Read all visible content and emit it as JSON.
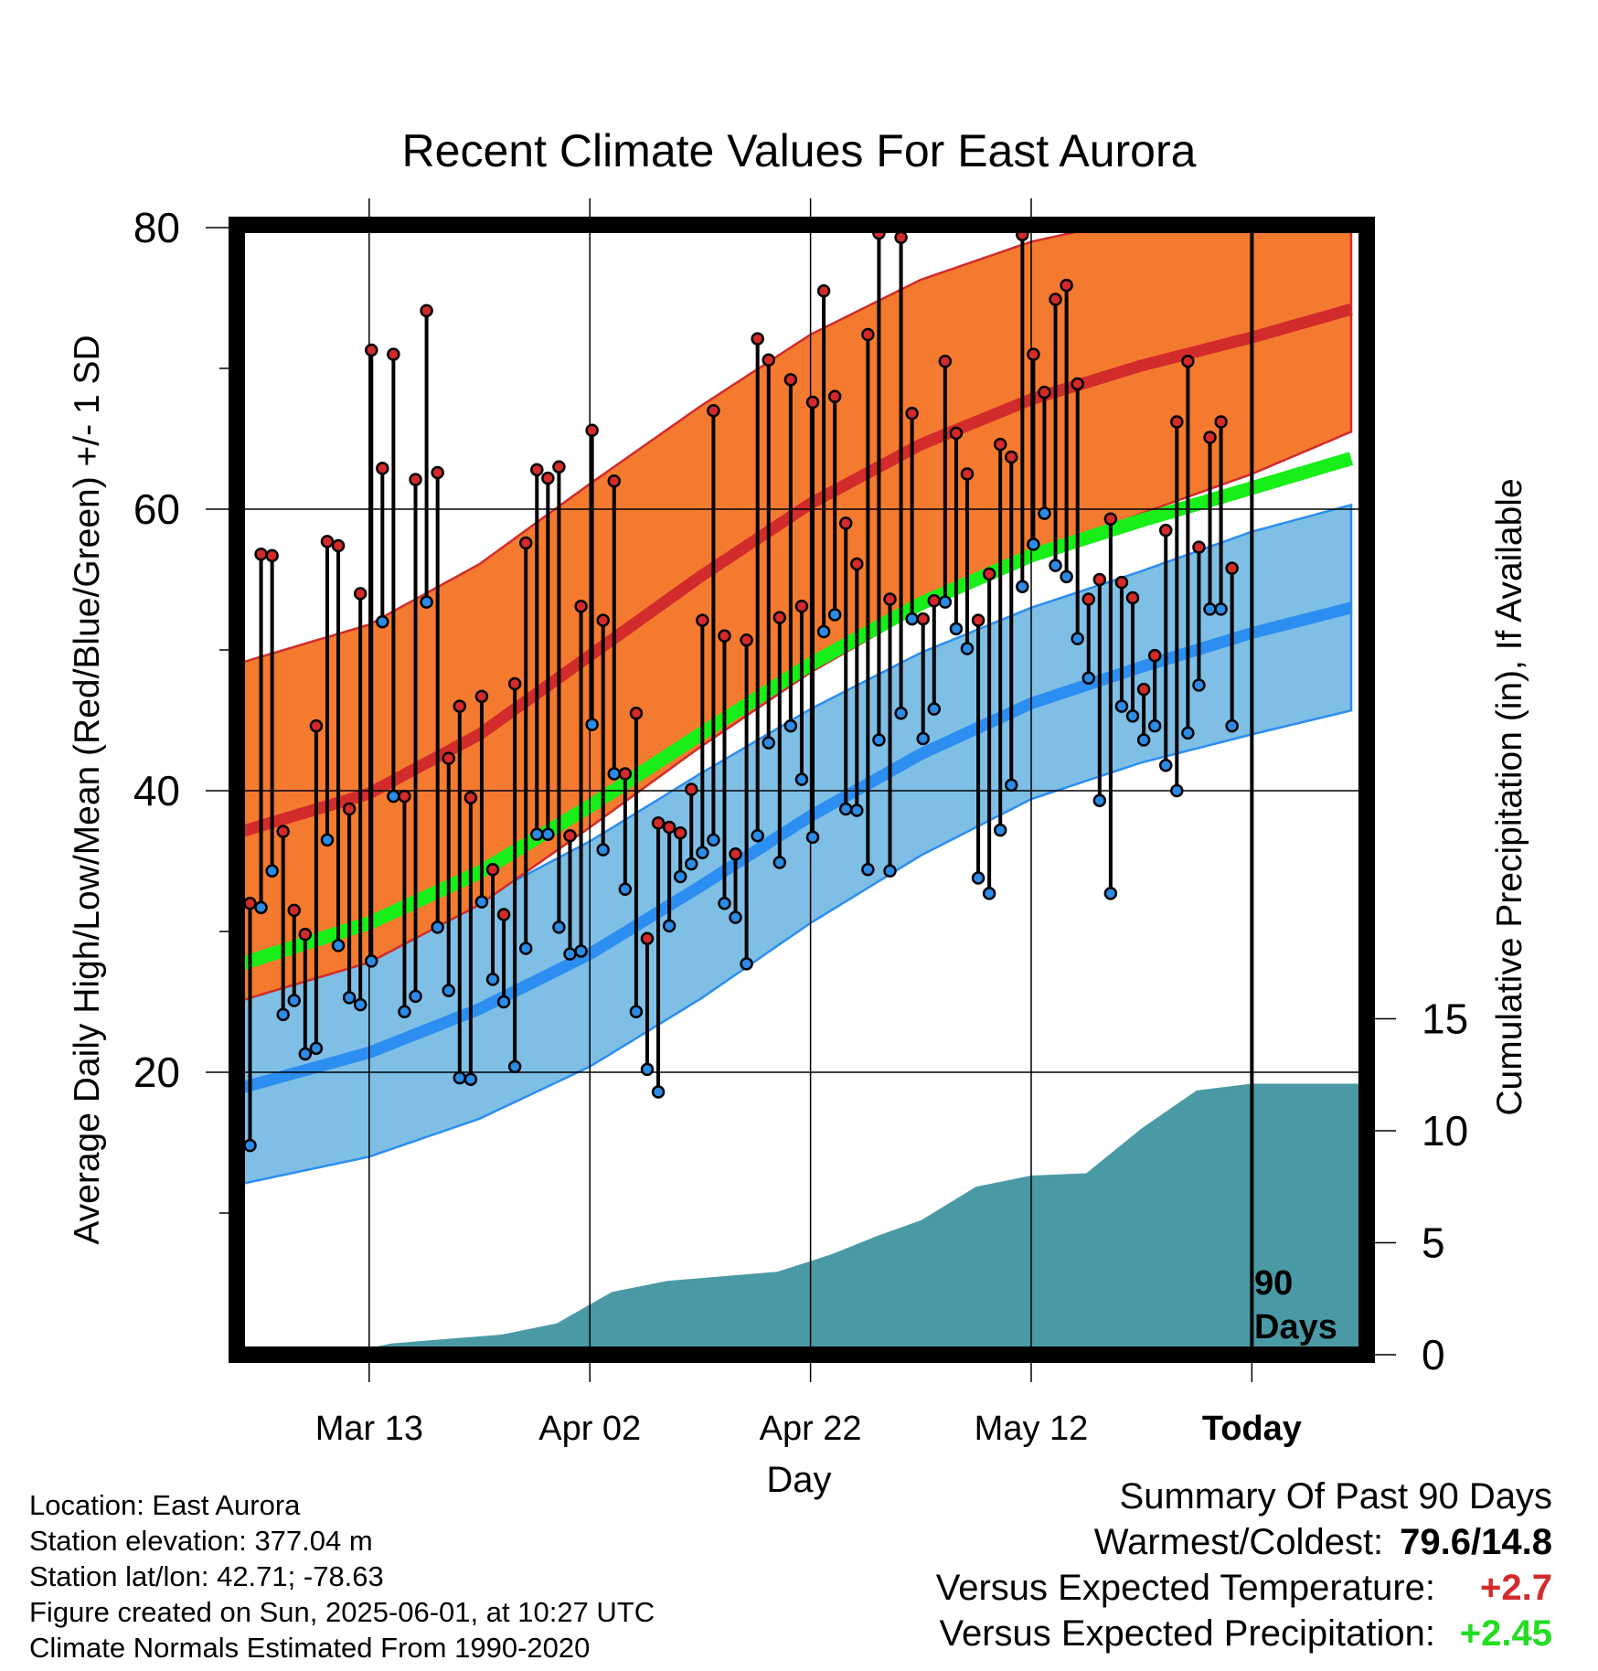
{
  "chart_data": {
    "type": "line",
    "title": "Recent Climate Values For East Aurora",
    "xlabel": "Day",
    "ylabel": "Average Daily High/Low/Mean (Red/Blue/Green) +/- 1 SD",
    "y2label": "Cumulative Precipitation (in), If Available",
    "x_tick_labels": [
      "Mar 13",
      "Apr 02",
      "Apr 22",
      "May 12",
      "Today"
    ],
    "x_ticks": [
      "2025-03-13",
      "2025-04-02",
      "2025-04-22",
      "2025-05-12",
      "2025-06-01"
    ],
    "xlim": [
      "2025-03-01",
      "2025-06-10"
    ],
    "ylim": [
      0,
      85
    ],
    "y_ticks": [
      20,
      40,
      60,
      80
    ],
    "y2lim": [
      0,
      20
    ],
    "y2_ticks": [
      0,
      5,
      10,
      15
    ],
    "grid": true,
    "today_marker": "90\nDays",
    "colors": {
      "high_band": "#f47a30",
      "high_line": "#d22b2b",
      "high_marker": "#d42a2a",
      "low_band": "#7fbfe6",
      "low_line": "#2c8ef0",
      "low_marker": "#2b8be6",
      "mean_line": "#18ee18",
      "precip": "#4a9aa6",
      "warm_text": "#d42a2a",
      "precip_text": "#22dd22"
    },
    "normals": {
      "x": [
        "2025-03-01",
        "2025-03-13",
        "2025-03-23",
        "2025-04-02",
        "2025-04-12",
        "2025-04-22",
        "2025-05-02",
        "2025-05-12",
        "2025-05-22",
        "2025-06-01",
        "2025-06-10"
      ],
      "high_mean": [
        37.0,
        39.8,
        44.0,
        49.6,
        55.2,
        60.4,
        64.6,
        67.8,
        70.2,
        72.2,
        74.2
      ],
      "high_sd": [
        12.0,
        12.0,
        12.1,
        12.2,
        12.1,
        12.0,
        11.7,
        11.2,
        10.5,
        9.7,
        8.7
      ],
      "low_mean": [
        18.8,
        21.4,
        24.5,
        28.4,
        33.2,
        38.2,
        42.6,
        46.2,
        48.8,
        51.2,
        53.0
      ],
      "low_sd": [
        6.8,
        7.4,
        7.8,
        8.0,
        8.0,
        7.6,
        7.2,
        6.8,
        6.8,
        7.2,
        7.3
      ],
      "mean": [
        27.6,
        30.6,
        34.2,
        38.9,
        44.0,
        49.0,
        53.3,
        56.7,
        59.2,
        61.5,
        63.6
      ]
    },
    "series": [
      {
        "name": "Daily High",
        "values": [
          32.0,
          56.8,
          56.7,
          37.1,
          31.5,
          29.8,
          44.6,
          57.7,
          57.4,
          38.7,
          54.0,
          71.3,
          62.9,
          71.0,
          39.6,
          62.1,
          74.1,
          62.6,
          42.3,
          46.0,
          39.5,
          46.7,
          34.4,
          31.2,
          47.6,
          57.6,
          62.8,
          62.2,
          63.0,
          36.8,
          53.1,
          65.6,
          52.1,
          62.0,
          41.2,
          45.5,
          29.5,
          37.7,
          37.4,
          37.0,
          40.1,
          52.1,
          67.0,
          51.0,
          35.5,
          50.7,
          72.1,
          70.6,
          52.3,
          69.2,
          53.1,
          67.6,
          75.5,
          68.0,
          59.0,
          56.1,
          72.4,
          79.6,
          53.6,
          79.3,
          66.8,
          52.2,
          53.5,
          70.5,
          65.4,
          62.5,
          52.1,
          55.4,
          64.6,
          63.7,
          79.5,
          71.0,
          68.3,
          74.9,
          75.9,
          68.9,
          53.6,
          55.0,
          59.3,
          54.8,
          53.7,
          47.2,
          49.6,
          58.5,
          66.2,
          70.5,
          57.3,
          65.1,
          66.2,
          55.8
        ]
      },
      {
        "name": "Daily Low",
        "values": [
          14.8,
          31.7,
          34.3,
          24.1,
          25.1,
          21.3,
          21.7,
          36.5,
          29.0,
          25.3,
          24.8,
          27.9,
          52.0,
          39.6,
          24.3,
          25.4,
          53.4,
          30.3,
          25.8,
          19.6,
          19.5,
          32.1,
          26.6,
          25.0,
          20.4,
          28.8,
          36.9,
          36.9,
          30.3,
          28.4,
          28.6,
          44.7,
          35.8,
          41.2,
          33.0,
          24.3,
          20.2,
          18.6,
          30.4,
          33.9,
          34.8,
          35.6,
          36.5,
          32.0,
          31.0,
          27.7,
          36.8,
          43.4,
          34.9,
          44.6,
          40.8,
          36.7,
          51.3,
          52.5,
          38.7,
          38.6,
          34.4,
          43.6,
          34.3,
          45.5,
          52.2,
          43.7,
          45.8,
          53.4,
          51.5,
          50.1,
          33.8,
          32.7,
          37.2,
          40.4,
          54.5,
          57.5,
          59.7,
          56.0,
          55.2,
          50.8,
          48.0,
          39.3,
          32.7,
          46.0,
          45.3,
          43.6,
          44.6,
          41.8,
          40.0,
          44.1,
          47.5,
          52.9,
          52.9,
          44.6
        ]
      }
    ],
    "precip_cumulative": {
      "x": [
        "2025-03-03",
        "2025-03-12",
        "2025-03-15",
        "2025-03-20",
        "2025-03-25",
        "2025-03-30",
        "2025-04-04",
        "2025-04-09",
        "2025-04-14",
        "2025-04-19",
        "2025-04-24",
        "2025-04-28",
        "2025-05-02",
        "2025-05-07",
        "2025-05-12",
        "2025-05-17",
        "2025-05-22",
        "2025-05-27",
        "2025-06-01",
        "2025-06-10"
      ],
      "values": [
        0,
        0.2,
        0.5,
        0.7,
        0.9,
        1.4,
        2.8,
        3.3,
        3.5,
        3.7,
        4.5,
        5.3,
        6.0,
        7.5,
        8.0,
        8.1,
        10.1,
        11.8,
        12.1,
        12.1
      ]
    }
  },
  "footer": {
    "location": "Location: East Aurora",
    "elevation": "Station elevation: 377.04 m",
    "latlon": "Station lat/lon: 42.71; -78.63",
    "created": "Figure created on Sun, 2025-06-01, at 10:27 UTC",
    "normals": "Climate Normals Estimated From 1990-2020"
  },
  "summary": {
    "heading": "Summary Of Past 90 Days",
    "warm_cold_label": "Warmest/Coldest:",
    "warm_cold_value": "79.6/14.8",
    "temp_label": "Versus Expected Temperature:",
    "temp_value": "+2.7",
    "precip_label": "Versus Expected Precipitation:",
    "precip_value": "+2.45"
  }
}
